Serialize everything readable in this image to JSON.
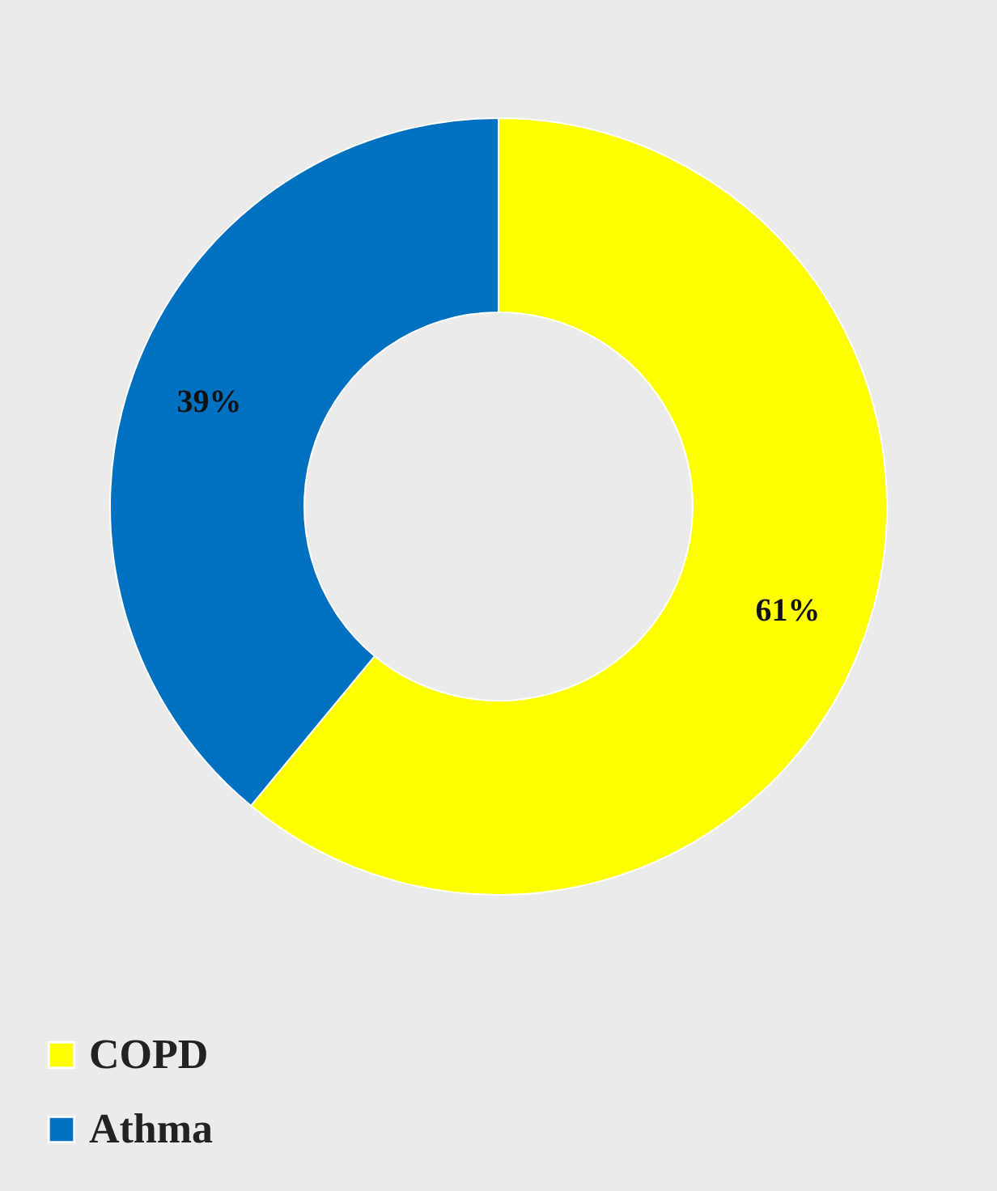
{
  "chart_data": {
    "type": "donut",
    "categories": [
      "COPD",
      "Athma"
    ],
    "values": [
      61,
      39
    ],
    "colors": [
      "#ffff00",
      "#0070c0"
    ],
    "value_labels": [
      "61%",
      "39%"
    ],
    "legend": "bottom"
  }
}
